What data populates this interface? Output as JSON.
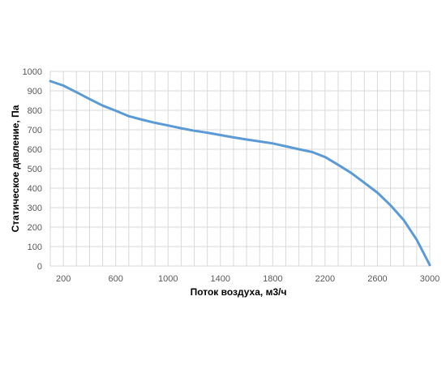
{
  "chart_data": {
    "type": "line",
    "xlabel": "Поток воздуха, м3/ч",
    "ylabel": "Статическое давление, Па",
    "xlim": [
      100,
      3000
    ],
    "ylim": [
      0,
      1000
    ],
    "x_ticks": [
      200,
      600,
      1000,
      1400,
      1800,
      2200,
      2600,
      3000
    ],
    "y_ticks": [
      0,
      100,
      200,
      300,
      400,
      500,
      600,
      700,
      800,
      900,
      1000
    ],
    "grid": true,
    "series": [
      {
        "color": "#5b9bd5",
        "x": [
          100,
          200,
          300,
          400,
          500,
          600,
          700,
          800,
          900,
          1000,
          1100,
          1200,
          1300,
          1400,
          1500,
          1600,
          1700,
          1800,
          1900,
          2000,
          2100,
          2200,
          2300,
          2400,
          2500,
          2600,
          2700,
          2800,
          2900,
          3000
        ],
        "y": [
          950,
          927,
          893,
          858,
          824,
          798,
          770,
          752,
          736,
          722,
          708,
          695,
          685,
          673,
          661,
          650,
          640,
          630,
          615,
          600,
          586,
          560,
          520,
          478,
          428,
          377,
          312,
          237,
          135,
          5
        ]
      }
    ]
  }
}
